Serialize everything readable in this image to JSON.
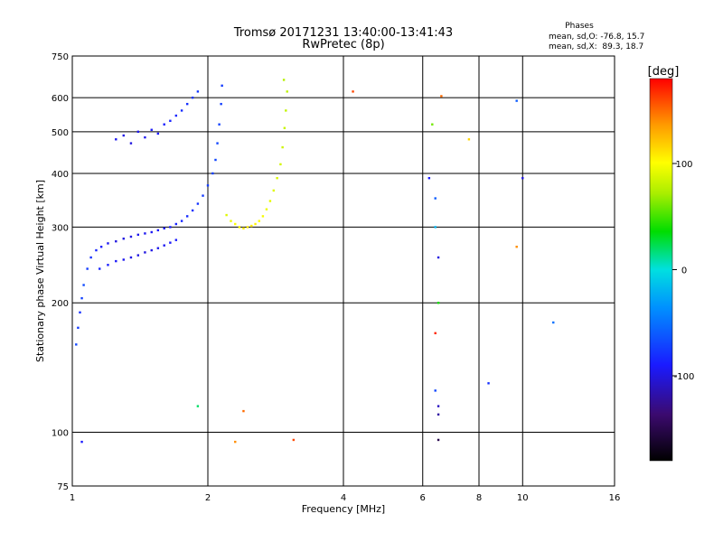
{
  "title_line1": "Tromsø 20171231 13:40:00-13:41:43",
  "title_line2": "RwPretec (8p)",
  "stats": {
    "heading": "Phases",
    "line_o": "mean, sd,O: -76.8, 15.7",
    "line_x": "mean, sd,X:  89.3, 18.7"
  },
  "chart_data": {
    "type": "scatter",
    "title": "Tromsø 20171231 13:40:00-13:41:43",
    "subtitle": "RwPretec (8p)",
    "xlabel": "Frequency [MHz]",
    "ylabel": "Stationary phase Virtual Height [km]",
    "x_scale": "log",
    "y_scale": "log",
    "xlim": [
      1,
      16
    ],
    "ylim": [
      75,
      750
    ],
    "x_ticks": [
      1,
      2,
      4,
      6,
      8,
      10,
      16
    ],
    "x_tick_labels": [
      "1",
      "2",
      "4",
      "6",
      "8",
      "10",
      "16"
    ],
    "y_ticks": [
      75,
      100,
      200,
      300,
      400,
      500,
      600,
      750
    ],
    "y_tick_labels": [
      "75",
      "100",
      "200",
      "300",
      "400",
      "500",
      "600",
      "750"
    ],
    "grid": true,
    "colorbar": {
      "label": "[deg]",
      "range": [
        -180,
        180
      ],
      "ticks": [
        100,
        0,
        -100
      ],
      "tick_labels": [
        "100",
        "0",
        "-100"
      ]
    },
    "series": [
      {
        "description_mode": "O",
        "points": [
          [
            1.02,
            160,
            -70
          ],
          [
            1.03,
            175,
            -75
          ],
          [
            1.04,
            190,
            -80
          ],
          [
            1.05,
            205,
            -72
          ],
          [
            1.06,
            220,
            -68
          ],
          [
            1.08,
            240,
            -75
          ],
          [
            1.1,
            255,
            -80
          ],
          [
            1.13,
            265,
            -85
          ],
          [
            1.16,
            270,
            -90
          ],
          [
            1.2,
            275,
            -95
          ],
          [
            1.25,
            278,
            -100
          ],
          [
            1.3,
            282,
            -100
          ],
          [
            1.35,
            285,
            -98
          ],
          [
            1.4,
            288,
            -96
          ],
          [
            1.45,
            290,
            -95
          ],
          [
            1.5,
            292,
            -94
          ],
          [
            1.55,
            295,
            -92
          ],
          [
            1.6,
            298,
            -90
          ],
          [
            1.65,
            300,
            -88
          ],
          [
            1.7,
            305,
            -86
          ],
          [
            1.75,
            310,
            -84
          ],
          [
            1.8,
            318,
            -82
          ],
          [
            1.85,
            328,
            -80
          ],
          [
            1.9,
            340,
            -78
          ],
          [
            1.95,
            355,
            -76
          ],
          [
            2.0,
            375,
            -74
          ],
          [
            2.05,
            400,
            -72
          ],
          [
            2.08,
            430,
            -70
          ],
          [
            2.1,
            470,
            -70
          ],
          [
            2.12,
            520,
            -72
          ],
          [
            2.14,
            580,
            -74
          ],
          [
            2.15,
            640,
            -75
          ],
          [
            1.15,
            240,
            -85
          ],
          [
            1.2,
            245,
            -88
          ],
          [
            1.25,
            250,
            -92
          ],
          [
            1.3,
            252,
            -95
          ],
          [
            1.35,
            255,
            -98
          ],
          [
            1.4,
            258,
            -100
          ],
          [
            1.45,
            262,
            -100
          ],
          [
            1.5,
            265,
            -98
          ],
          [
            1.55,
            268,
            -96
          ],
          [
            1.6,
            272,
            -94
          ],
          [
            1.65,
            276,
            -92
          ],
          [
            1.7,
            280,
            -90
          ],
          [
            1.25,
            480,
            -95
          ],
          [
            1.3,
            490,
            -98
          ],
          [
            1.35,
            470,
            -100
          ],
          [
            1.4,
            500,
            -96
          ],
          [
            1.45,
            485,
            -95
          ],
          [
            1.5,
            505,
            -92
          ],
          [
            1.55,
            495,
            -90
          ],
          [
            1.6,
            520,
            -88
          ],
          [
            1.65,
            530,
            -86
          ],
          [
            1.7,
            545,
            -84
          ],
          [
            1.75,
            560,
            -82
          ],
          [
            1.8,
            580,
            -80
          ],
          [
            1.85,
            600,
            -78
          ],
          [
            1.9,
            620,
            -76
          ]
        ]
      },
      {
        "description_mode": "X",
        "points": [
          [
            2.2,
            320,
            90
          ],
          [
            2.25,
            310,
            95
          ],
          [
            2.3,
            305,
            100
          ],
          [
            2.35,
            300,
            105
          ],
          [
            2.4,
            298,
            108
          ],
          [
            2.45,
            300,
            110
          ],
          [
            2.5,
            302,
            108
          ],
          [
            2.55,
            305,
            105
          ],
          [
            2.6,
            310,
            100
          ],
          [
            2.65,
            318,
            98
          ],
          [
            2.7,
            330,
            95
          ],
          [
            2.75,
            345,
            92
          ],
          [
            2.8,
            365,
            90
          ],
          [
            2.85,
            390,
            88
          ],
          [
            2.9,
            420,
            86
          ],
          [
            2.93,
            460,
            84
          ],
          [
            2.96,
            510,
            82
          ],
          [
            2.98,
            560,
            80
          ],
          [
            3.0,
            620,
            78
          ],
          [
            2.95,
            660,
            76
          ]
        ]
      },
      {
        "description_mode": "scattered",
        "points": [
          [
            6.2,
            390,
            -90
          ],
          [
            6.3,
            520,
            60
          ],
          [
            6.4,
            350,
            -60
          ],
          [
            6.4,
            300,
            -20
          ],
          [
            6.5,
            255,
            -100
          ],
          [
            6.5,
            200,
            40
          ],
          [
            6.4,
            170,
            170
          ],
          [
            6.4,
            125,
            -70
          ],
          [
            6.5,
            115,
            -110
          ],
          [
            6.5,
            110,
            -120
          ],
          [
            6.5,
            96,
            -150
          ],
          [
            6.6,
            605,
            150
          ],
          [
            7.6,
            480,
            115
          ],
          [
            8.4,
            130,
            -80
          ],
          [
            9.7,
            590,
            -60
          ],
          [
            9.7,
            270,
            140
          ],
          [
            10.0,
            390,
            -100
          ],
          [
            11.7,
            180,
            -50
          ],
          [
            4.2,
            620,
            160
          ],
          [
            1.9,
            115,
            20
          ],
          [
            2.3,
            95,
            140
          ],
          [
            2.4,
            112,
            150
          ],
          [
            3.1,
            96,
            160
          ],
          [
            1.05,
            95,
            -90
          ]
        ]
      }
    ]
  }
}
